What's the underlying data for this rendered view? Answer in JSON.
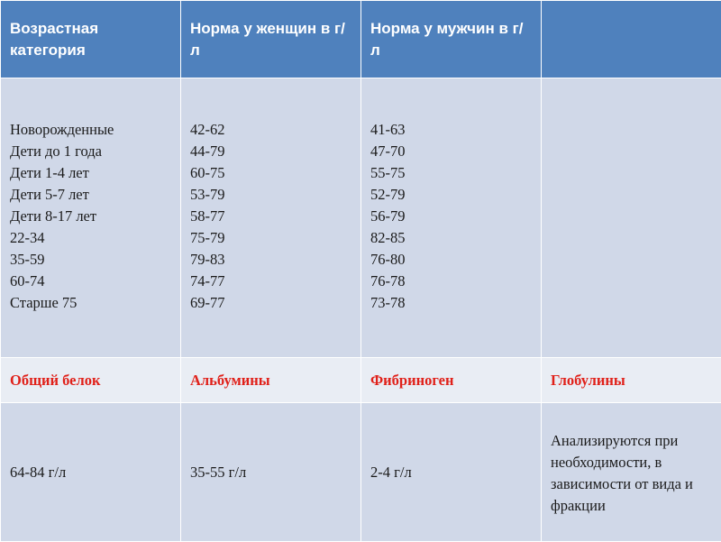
{
  "table": {
    "header": [
      "Возрастная категория",
      "Норма у женщин в г/л",
      "Норма у мужчин в г/л",
      ""
    ],
    "age_categories": [
      "Новорожденные",
      "Дети до 1 года",
      "Дети 1-4 лет",
      "Дети 5-7 лет",
      "Дети 8-17 лет",
      "22-34",
      "35-59",
      "60-74",
      "Старше 75"
    ],
    "women_norms": [
      "42-62",
      "44-79",
      "60-75",
      "53-79",
      "58-77",
      "75-79",
      "79-83",
      "74-77",
      "69-77"
    ],
    "men_norms": [
      "41-63",
      "47-70",
      "55-75",
      "52-79",
      "56-79",
      "82-85",
      "76-80",
      "76-78",
      "73-78"
    ],
    "subheader": [
      "Общий белок",
      "Альбумины",
      "Фибриноген",
      "Глобулины"
    ],
    "values": [
      "64-84 г/л",
      "35-55 г/л",
      "2-4 г/л",
      "Анализируются при необходимости, в зависимости от вида и фракции"
    ]
  },
  "colors": {
    "header_bg": "#4f81bd",
    "cell_bg": "#d0d8e8",
    "subheader_bg": "#e9edf4",
    "subheader_text": "#e0211a"
  }
}
